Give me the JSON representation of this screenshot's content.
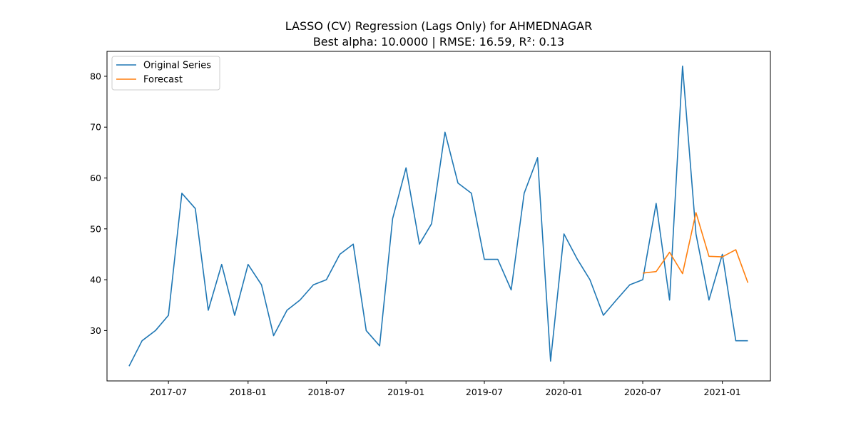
{
  "chart_data": {
    "type": "line",
    "title": "LASSO (CV) Regression (Lags Only) for AHMEDNAGAR",
    "subtitle": "Best alpha: 10.0000 | RMSE: 16.59, R²: 0.13",
    "xlabel": "",
    "ylabel": "",
    "x_axis_type": "date",
    "xlim": [
      "2017-02-09",
      "2021-04-22"
    ],
    "ylim": [
      20.1,
      84.9
    ],
    "x_ticks": [
      "2017-07-01",
      "2018-01-01",
      "2018-07-01",
      "2019-01-01",
      "2019-07-01",
      "2020-01-01",
      "2020-07-01",
      "2021-01-01"
    ],
    "x_tick_labels": [
      "2017-07",
      "2018-01",
      "2018-07",
      "2019-01",
      "2019-07",
      "2020-01",
      "2020-07",
      "2021-01"
    ],
    "y_ticks": [
      30,
      40,
      50,
      60,
      70,
      80
    ],
    "y_tick_labels": [
      "30",
      "40",
      "50",
      "60",
      "70",
      "80"
    ],
    "grid": false,
    "legend_position": "top-left",
    "series": [
      {
        "name": "Original Series",
        "color": "#1f77b4",
        "x": [
          "2017-04-01",
          "2017-05-01",
          "2017-06-01",
          "2017-07-01",
          "2017-08-01",
          "2017-09-01",
          "2017-10-01",
          "2017-11-01",
          "2017-12-01",
          "2018-01-01",
          "2018-02-01",
          "2018-03-01",
          "2018-04-01",
          "2018-05-01",
          "2018-06-01",
          "2018-07-01",
          "2018-08-01",
          "2018-09-01",
          "2018-10-01",
          "2018-11-01",
          "2018-12-01",
          "2019-01-01",
          "2019-02-01",
          "2019-03-01",
          "2019-04-01",
          "2019-05-01",
          "2019-06-01",
          "2019-07-01",
          "2019-08-01",
          "2019-09-01",
          "2019-10-01",
          "2019-11-01",
          "2019-12-01",
          "2020-01-01",
          "2020-02-01",
          "2020-03-01",
          "2020-04-01",
          "2020-05-01",
          "2020-06-01",
          "2020-07-01",
          "2020-08-01",
          "2020-09-01",
          "2020-10-01",
          "2020-11-01",
          "2020-12-01",
          "2021-01-01",
          "2021-02-01",
          "2021-03-01"
        ],
        "y": [
          23,
          28,
          30,
          33,
          57,
          54,
          34,
          43,
          33,
          43,
          39,
          29,
          34,
          36,
          39,
          40,
          45,
          47,
          30,
          27,
          52,
          62,
          47,
          51,
          69,
          59,
          57,
          44,
          44,
          38,
          57,
          64,
          24,
          49,
          44,
          40,
          33,
          36,
          39,
          40,
          55,
          36,
          82,
          49,
          36,
          45,
          28,
          28
        ]
      },
      {
        "name": "Forecast",
        "color": "#ff7f0e",
        "x": [
          "2020-07-01",
          "2020-08-01",
          "2020-09-01",
          "2020-10-01",
          "2020-11-01",
          "2020-12-01",
          "2021-01-01",
          "2021-02-01",
          "2021-03-01"
        ],
        "y": [
          41.3,
          41.6,
          45.4,
          41.2,
          53.2,
          44.6,
          44.5,
          45.9,
          39.4
        ]
      }
    ]
  }
}
